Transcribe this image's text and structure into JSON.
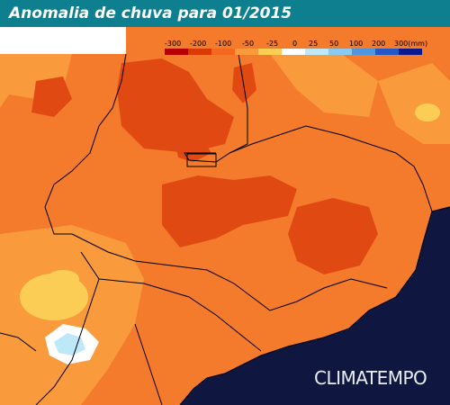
{
  "title": "Anomalia de chuva para 01/2015",
  "legend": {
    "labels": [
      "-300",
      "-200",
      "-100",
      "-50",
      "-25",
      "0",
      "25",
      "50",
      "100",
      "200",
      "300(mm)"
    ],
    "colors": [
      "#b40000",
      "#d83a00",
      "#f5681f",
      "#f99a3c",
      "#fbcd55",
      "#ffffff",
      "#bde8f7",
      "#8ac9f0",
      "#4f94de",
      "#2558c6",
      "#0b1a8c"
    ]
  },
  "brand": "CLIMATEMPO",
  "colors": {
    "title_bar": "#0d7f8f",
    "ocean": "#0f1740",
    "base_anomaly": "#f47a2c",
    "strong_deficit": "#e04a12",
    "moderate_deficit": "#f99a3c",
    "near_normal": "#fbcd55",
    "positive": "#bde8f7"
  }
}
